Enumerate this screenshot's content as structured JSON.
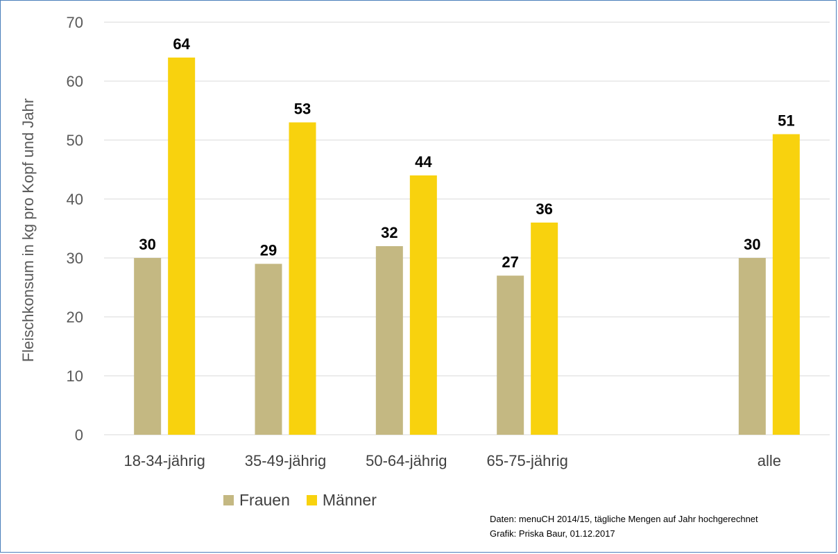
{
  "chart_data": {
    "type": "bar",
    "categories": [
      "18-34-jährig",
      "35-49-jährig",
      "50-64-jährig",
      "65-75-jährig",
      "",
      "alle"
    ],
    "series": [
      {
        "name": "Frauen",
        "values": [
          30,
          29,
          32,
          27,
          null,
          30
        ],
        "labels": [
          "30",
          "29",
          "32",
          "27",
          "",
          "30"
        ],
        "color": "#c4b882"
      },
      {
        "name": "Männer",
        "values": [
          64,
          53,
          44,
          36,
          null,
          51
        ],
        "labels": [
          "64",
          "53",
          "44",
          "36",
          "",
          "51"
        ],
        "color": "#f8d20e"
      }
    ],
    "ylabel": "Fleischkonsum in kg pro Kopf und Jahr",
    "xlabel": "",
    "ylim": [
      0,
      70
    ],
    "yticks": [
      0,
      10,
      20,
      30,
      40,
      50,
      60,
      70
    ],
    "grid": true,
    "legend_position": "bottom"
  },
  "footnote": {
    "line1": "Daten: menuCH 2014/15, tägliche Mengen auf Jahr hochgerechnet",
    "line2": "Grafik: Priska Baur, 01.12.2017"
  },
  "colors": {
    "frame_border": "#4a7ebb",
    "gridline": "#d9d9d9"
  }
}
